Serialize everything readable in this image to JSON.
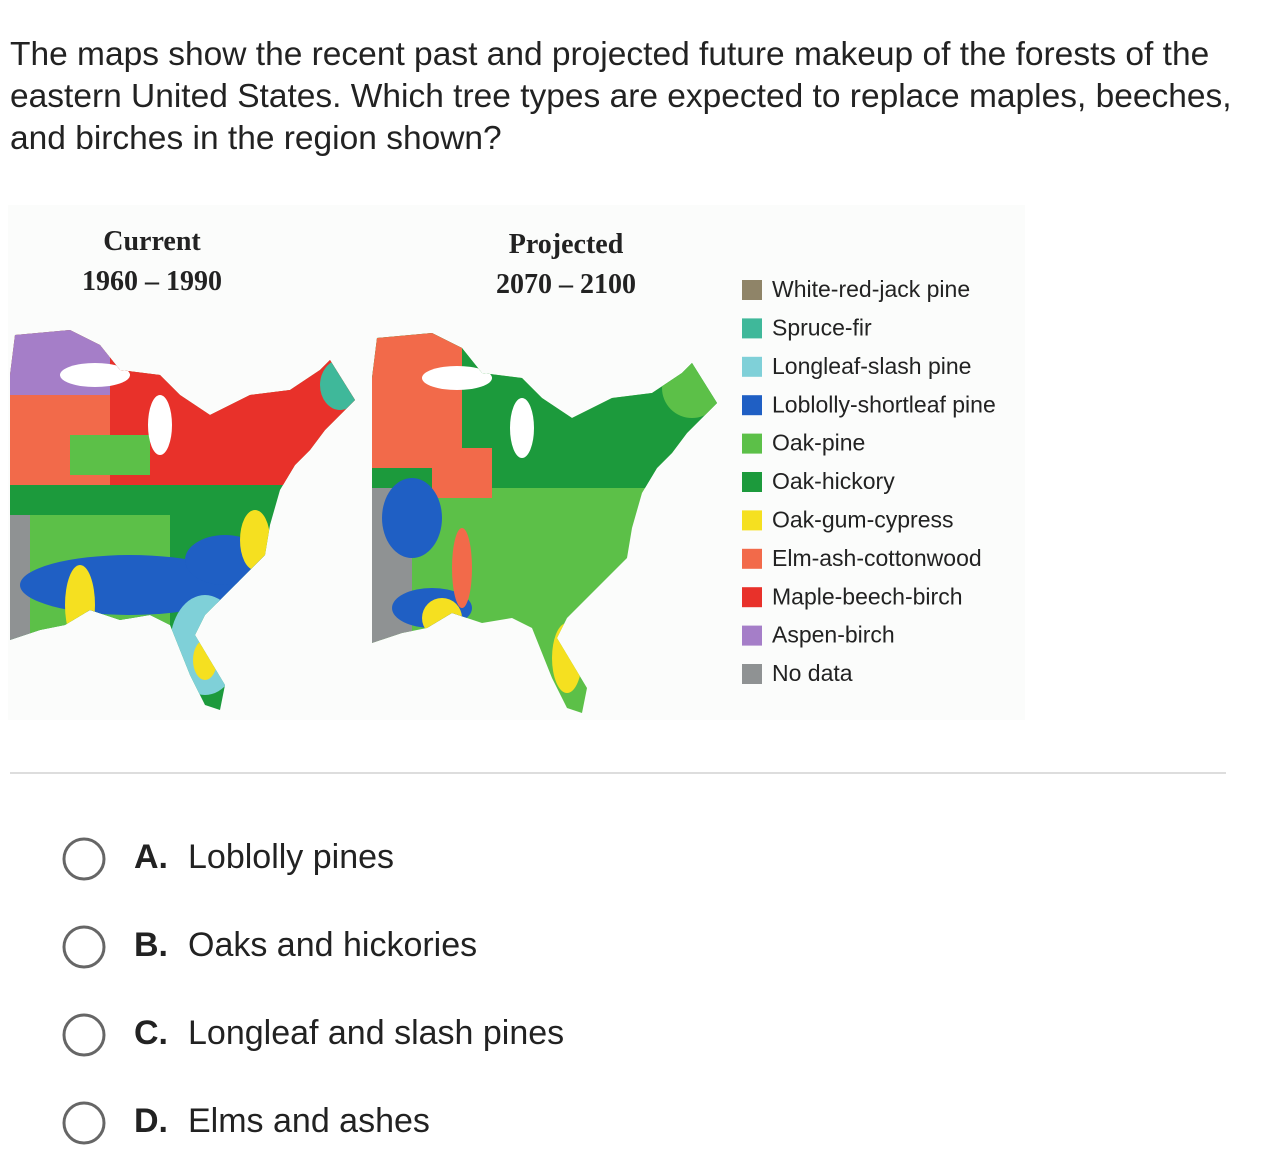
{
  "question": "The maps show the recent past and projected future makeup of the forests of the eastern United States. Which tree types are expected to replace maples, beeches, and birches in the region shown?",
  "figure": {
    "maps": [
      {
        "title": "Current",
        "period": "1960 – 1990"
      },
      {
        "title": "Projected",
        "period": "2070 – 2100"
      }
    ],
    "legend": [
      {
        "label": "White-red-jack pine",
        "color": "#8f8468"
      },
      {
        "label": "Spruce-fir",
        "color": "#3fb89a"
      },
      {
        "label": "Longleaf-slash pine",
        "color": "#7fd0d8"
      },
      {
        "label": "Loblolly-shortleaf pine",
        "color": "#1f5fc4"
      },
      {
        "label": "Oak-pine",
        "color": "#5cc048"
      },
      {
        "label": "Oak-hickory",
        "color": "#1c9a3c"
      },
      {
        "label": "Oak-gum-cypress",
        "color": "#f5e020"
      },
      {
        "label": "Elm-ash-cottonwood",
        "color": "#f26a4a"
      },
      {
        "label": "Maple-beech-birch",
        "color": "#e8312a"
      },
      {
        "label": "Aspen-birch",
        "color": "#a57ec8"
      },
      {
        "label": "No data",
        "color": "#8f9293"
      }
    ]
  },
  "options": [
    {
      "letter": "A.",
      "text": "Loblolly pines"
    },
    {
      "letter": "B.",
      "text": "Oaks and hickories"
    },
    {
      "letter": "C.",
      "text": "Longleaf and slash pines"
    },
    {
      "letter": "D.",
      "text": "Elms and ashes"
    }
  ]
}
